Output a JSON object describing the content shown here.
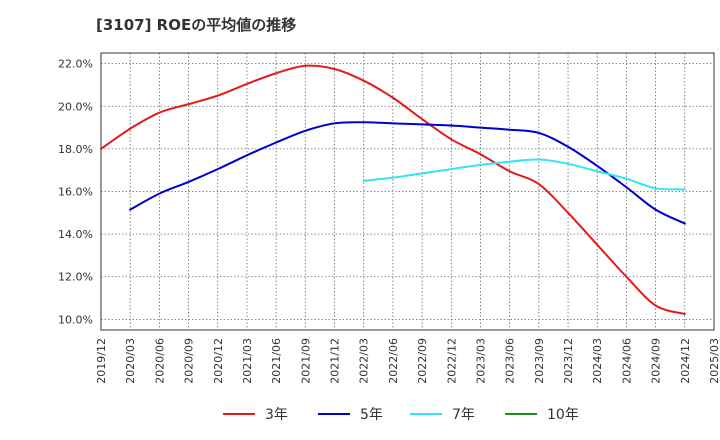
{
  "title": "[3107]  ROEの平均値の推移",
  "chart_data": {
    "type": "line",
    "title": "[3107]  ROEの平均値の推移",
    "xlabel": "",
    "ylabel": "",
    "x": [
      "2019/12",
      "2020/03",
      "2020/06",
      "2020/09",
      "2020/12",
      "2021/03",
      "2021/06",
      "2021/09",
      "2021/12",
      "2022/03",
      "2022/06",
      "2022/09",
      "2022/12",
      "2023/03",
      "2023/06",
      "2023/09",
      "2023/12",
      "2024/03",
      "2024/06",
      "2024/09",
      "2024/12",
      "2025/03"
    ],
    "ylim": [
      9.5,
      22.5
    ],
    "yticks": [
      10.0,
      12.0,
      14.0,
      16.0,
      18.0,
      20.0,
      22.0
    ],
    "ytick_labels": [
      "10.0%",
      "12.0%",
      "14.0%",
      "16.0%",
      "18.0%",
      "20.0%",
      "22.0%"
    ],
    "grid": true,
    "legend_position": "bottom",
    "series": [
      {
        "name": "3年",
        "color": "#e31a1c",
        "values": [
          18.0,
          18.95,
          19.7,
          20.1,
          20.5,
          21.05,
          21.55,
          21.9,
          21.75,
          21.2,
          20.4,
          19.4,
          18.45,
          17.75,
          16.95,
          16.35,
          15.0,
          13.5,
          12.0,
          10.65,
          10.25,
          null
        ]
      },
      {
        "name": "5年",
        "color": "#0000cc",
        "values": [
          null,
          15.15,
          15.9,
          16.45,
          17.05,
          17.7,
          18.3,
          18.85,
          19.2,
          19.25,
          19.2,
          19.15,
          19.1,
          19.0,
          18.9,
          18.75,
          18.1,
          17.2,
          16.2,
          15.15,
          14.5,
          null
        ]
      },
      {
        "name": "7年",
        "color": "#33e5f0",
        "values": [
          null,
          null,
          null,
          null,
          null,
          null,
          null,
          null,
          null,
          16.5,
          16.65,
          16.85,
          17.05,
          17.25,
          17.4,
          17.5,
          17.3,
          16.95,
          16.6,
          16.15,
          16.1,
          null
        ]
      },
      {
        "name": "10年",
        "color": "#228b22",
        "values": [
          null,
          null,
          null,
          null,
          null,
          null,
          null,
          null,
          null,
          null,
          null,
          null,
          null,
          null,
          null,
          null,
          null,
          null,
          null,
          null,
          null,
          null
        ]
      }
    ]
  }
}
